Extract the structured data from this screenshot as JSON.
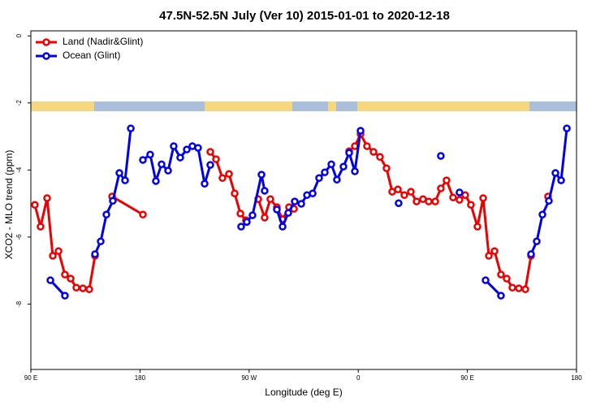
{
  "chart_data": {
    "type": "line",
    "title": "47.5N-52.5N July (Ver 10)   2015-01-01 to 2020-12-18",
    "x_label": "Longitude (deg E)",
    "y_label": "XCO2 - MLO trend (ppm)",
    "xlim": [
      90,
      540
    ],
    "ylim": [
      -9.95,
      0.15
    ],
    "xticks": [
      {
        "value": 90,
        "label": "90 E"
      },
      {
        "value": 180,
        "label": "180"
      },
      {
        "value": 270,
        "label": "90 W"
      },
      {
        "value": 360,
        "label": "0"
      },
      {
        "value": 450,
        "label": "90 E"
      },
      {
        "value": 540,
        "label": "180"
      }
    ],
    "yticks": [
      0,
      -2,
      -4,
      -6,
      -8
    ],
    "legend": "top-left",
    "series": [
      {
        "name": "Land (Nadir&Glint)",
        "color": "#ee0000",
        "x": [
          93.3,
          98,
          103.4,
          108.1,
          112.8,
          118.1,
          122.8,
          127.5,
          132.9,
          138.2,
          142.9,
          null,
          157,
          182.4,
          null,
          238,
          242.7,
          248,
          253.4,
          258.1,
          262.8,
          267.4,
          null,
          277.5,
          282.8,
          287.5,
          292.9,
          297.6,
          302.9,
          307,
          null,
          352.5,
          357.2,
          361.9,
          367.2,
          372.6,
          377.9,
          383.3,
          388,
          392.7,
          398,
          403.4,
          408.1,
          413.4,
          418.1,
          423.5,
          428.1,
          432.8,
          438.2,
          443.5,
          448.2,
          452.9,
          458.3,
          463,
          467.7,
          472.4,
          477.7,
          482.4,
          487.1,
          492.4,
          497.8,
          502.5,
          null,
          516.5
        ],
        "values": [
          -5.04,
          -5.69,
          -4.84,
          -6.56,
          -6.42,
          -7.12,
          -7.24,
          -7.51,
          -7.53,
          -7.56,
          -6.56,
          null,
          -4.79,
          -5.33,
          null,
          -3.46,
          -3.68,
          -4.24,
          -4.12,
          -4.7,
          -5.3,
          -5.5,
          null,
          -4.87,
          -5.42,
          -4.87,
          -5.11,
          -5.47,
          -5.11,
          -5.16,
          null,
          -3.44,
          -3.29,
          -2.93,
          -3.29,
          -3.46,
          -3.61,
          -3.95,
          -4.65,
          -4.58,
          -4.75,
          -4.65,
          -4.94,
          -4.87,
          -4.94,
          -4.94,
          -4.55,
          -4.31,
          -4.82,
          -4.89,
          -4.75,
          -5.04,
          -5.69,
          -4.84,
          -6.56,
          -6.42,
          -7.12,
          -7.24,
          -7.51,
          -7.53,
          -7.56,
          -6.56,
          null,
          -4.79
        ]
      },
      {
        "name": "Ocean (Glint)",
        "color": "#0000ee",
        "x": [
          106.1,
          118.1,
          null,
          142.9,
          147.6,
          152.3,
          157.6,
          163,
          167.7,
          172.4,
          null,
          182.4,
          188.4,
          193.1,
          197.8,
          203.2,
          207.8,
          213.2,
          218.6,
          223.2,
          227.9,
          233.3,
          238,
          null,
          263.4,
          268.1,
          272.8,
          280.2,
          282.8,
          null,
          292.9,
          297.6,
          302.3,
          307.6,
          313,
          317.7,
          322.4,
          327.7,
          332.4,
          337.8,
          342.4,
          347.8,
          352.5,
          357.2,
          361.9,
          null,
          393.3,
          null,
          428.1,
          null,
          443.5,
          null,
          465,
          477.7,
          null,
          502.5,
          507.2,
          511.9,
          517.2,
          522.6,
          527.3,
          532
        ],
        "values": [
          -7.29,
          -7.75,
          null,
          -6.51,
          -6.13,
          -5.33,
          -4.92,
          -4.09,
          -4.31,
          -2.76,
          null,
          -3.7,
          -3.54,
          -4.33,
          -3.83,
          -4.02,
          -3.29,
          -3.63,
          -3.39,
          -3.29,
          -3.34,
          -4.41,
          -3.85,
          null,
          -5.69,
          -5.55,
          -5.35,
          -4.14,
          -4.62,
          null,
          -5.18,
          -5.69,
          -5.28,
          -4.94,
          -5.01,
          -4.75,
          -4.7,
          -4.24,
          -4.07,
          -3.83,
          -4.29,
          -3.9,
          -3.49,
          -4.04,
          -2.83,
          null,
          -4.99,
          null,
          -3.58,
          null,
          -4.67,
          null,
          -7.29,
          -7.75,
          null,
          -6.51,
          -6.13,
          -5.33,
          -4.92,
          -4.09,
          -4.31,
          -2.76
        ]
      }
    ]
  }
}
